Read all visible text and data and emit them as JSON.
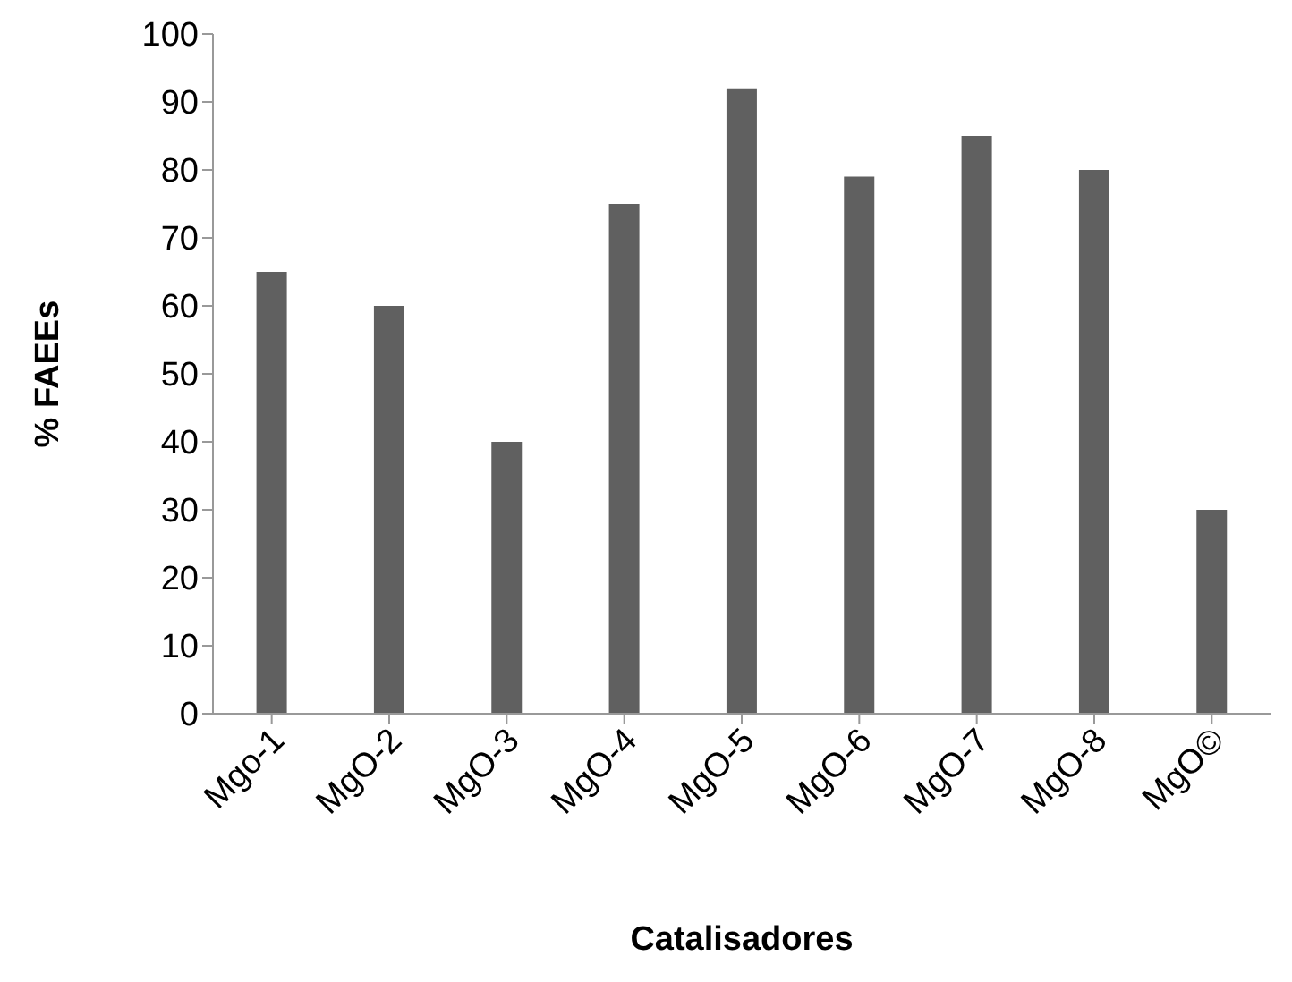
{
  "chart_data": {
    "type": "bar",
    "xlabel": "Catalisadores",
    "ylabel": "% FAEEs",
    "categories": [
      "Mgo-1",
      "MgO-2",
      "MgO-3",
      "MgO-4",
      "MgO-5",
      "MgO-6",
      "MgO-7",
      "MgO-8",
      "MgO©"
    ],
    "values": [
      65,
      60,
      40,
      75,
      92,
      79,
      85,
      80,
      30
    ],
    "color": "#606060",
    "ylim": [
      0,
      100
    ],
    "yticks": [
      0,
      10,
      20,
      30,
      40,
      50,
      60,
      70,
      80,
      90,
      100
    ],
    "grid": false,
    "legend": false
  }
}
